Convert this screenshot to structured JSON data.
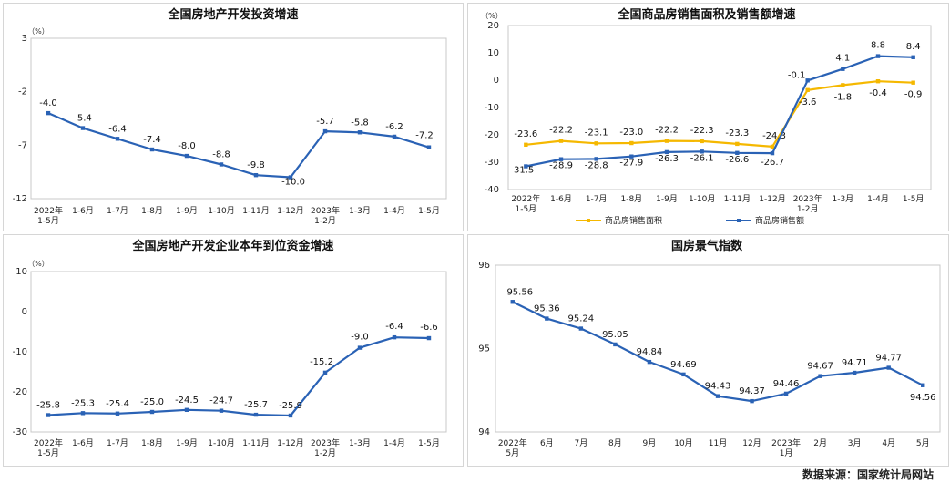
{
  "source": "数据来源：国家统计局网站",
  "chart_data": [
    {
      "type": "line",
      "title": "全国房地产开发投资增速",
      "unit_label": "（%）",
      "categories": [
        "2022年\n1-5月",
        "1-6月",
        "1-7月",
        "1-8月",
        "1-9月",
        "1-10月",
        "1-11月",
        "1-12月",
        "2023年\n1-2月",
        "1-3月",
        "1-4月",
        "1-5月"
      ],
      "yticks": [
        3,
        -2,
        -7,
        -12
      ],
      "ylim": [
        -12,
        3
      ],
      "series": [
        {
          "name": "全国房地产开发投资增速",
          "color": "#2a62b5",
          "values": [
            -4.0,
            -5.4,
            -6.4,
            -7.4,
            -8.0,
            -8.8,
            -9.8,
            -10.0,
            -5.7,
            -5.8,
            -6.2,
            -7.2
          ],
          "labels": [
            "-4.0",
            "-5.4",
            "-6.4",
            "-7.4",
            "-8.0",
            "-8.8",
            "-9.8",
            "-10.0",
            "-5.7",
            "-5.8",
            "-6.2",
            "-7.2"
          ]
        }
      ]
    },
    {
      "type": "line",
      "title": "全国商品房销售面积及销售额增速",
      "unit_label": "（%）",
      "categories": [
        "2022年\n1-5月",
        "1-6月",
        "1-7月",
        "1-8月",
        "1-9月",
        "1-10月",
        "1-11月",
        "1-12月",
        "2023年\n1-2月",
        "1-3月",
        "1-4月",
        "1-5月"
      ],
      "yticks": [
        20,
        10,
        0,
        -10,
        -20,
        -30,
        -40
      ],
      "ylim": [
        -40,
        20
      ],
      "series": [
        {
          "name": "商品房销售面积",
          "color": "#f5b800",
          "values": [
            -23.6,
            -22.2,
            -23.1,
            -23.0,
            -22.2,
            -22.3,
            -23.3,
            -24.3,
            -3.6,
            -1.8,
            -0.4,
            -0.9
          ],
          "labels": [
            "-23.6",
            "-22.2",
            "-23.1",
            "-23.0",
            "-22.2",
            "-22.3",
            "-23.3",
            "-24.3",
            "-3.6",
            "-1.8",
            "-0.4",
            "-0.9"
          ]
        },
        {
          "name": "商品房销售额",
          "color": "#2a62b5",
          "values": [
            -31.5,
            -28.9,
            -28.8,
            -27.9,
            -26.3,
            -26.1,
            -26.6,
            -26.7,
            -0.1,
            4.1,
            8.8,
            8.4
          ],
          "labels": [
            "-31.5",
            "-28.9",
            "-28.8",
            "-27.9",
            "-26.3",
            "-26.1",
            "-26.6",
            "-26.7",
            "-0.1",
            "4.1",
            "8.8",
            "8.4"
          ]
        }
      ]
    },
    {
      "type": "line",
      "title": "全国房地产开发企业本年到位资金增速",
      "unit_label": "（%）",
      "categories": [
        "2022年\n1-5月",
        "1-6月",
        "1-7月",
        "1-8月",
        "1-9月",
        "1-10月",
        "1-11月",
        "1-12月",
        "2023年\n1-2月",
        "1-3月",
        "1-4月",
        "1-5月"
      ],
      "yticks": [
        10,
        0,
        -10,
        -20,
        -30
      ],
      "ylim": [
        -30,
        10
      ],
      "series": [
        {
          "name": "全国房地产开发企业本年到位资金增速",
          "color": "#2a62b5",
          "values": [
            -25.8,
            -25.3,
            -25.4,
            -25.0,
            -24.5,
            -24.7,
            -25.7,
            -25.9,
            -15.2,
            -9.0,
            -6.4,
            -6.6
          ],
          "labels": [
            "-25.8",
            "-25.3",
            "-25.4",
            "-25.0",
            "-24.5",
            "-24.7",
            "-25.7",
            "-25.9",
            "-15.2",
            "-9.0",
            "-6.4",
            "-6.6"
          ]
        }
      ]
    },
    {
      "type": "line",
      "title": "国房景气指数",
      "unit_label": "",
      "categories": [
        "2022年\n5月",
        "6月",
        "7月",
        "8月",
        "9月",
        "10月",
        "11月",
        "12月",
        "2023年\n1月",
        "2月",
        "3月",
        "4月",
        "5月"
      ],
      "yticks": [
        96,
        95,
        94
      ],
      "ylim": [
        94,
        96
      ],
      "series": [
        {
          "name": "国房景气指数",
          "color": "#2a62b5",
          "values": [
            95.56,
            95.36,
            95.24,
            95.05,
            94.84,
            94.69,
            94.43,
            94.37,
            94.46,
            94.67,
            94.71,
            94.77,
            94.56
          ],
          "labels": [
            "95.56",
            "95.36",
            "95.24",
            "95.05",
            "94.84",
            "94.69",
            "94.43",
            "94.37",
            "94.46",
            "94.67",
            "94.71",
            "94.77",
            "94.56"
          ]
        }
      ]
    }
  ]
}
